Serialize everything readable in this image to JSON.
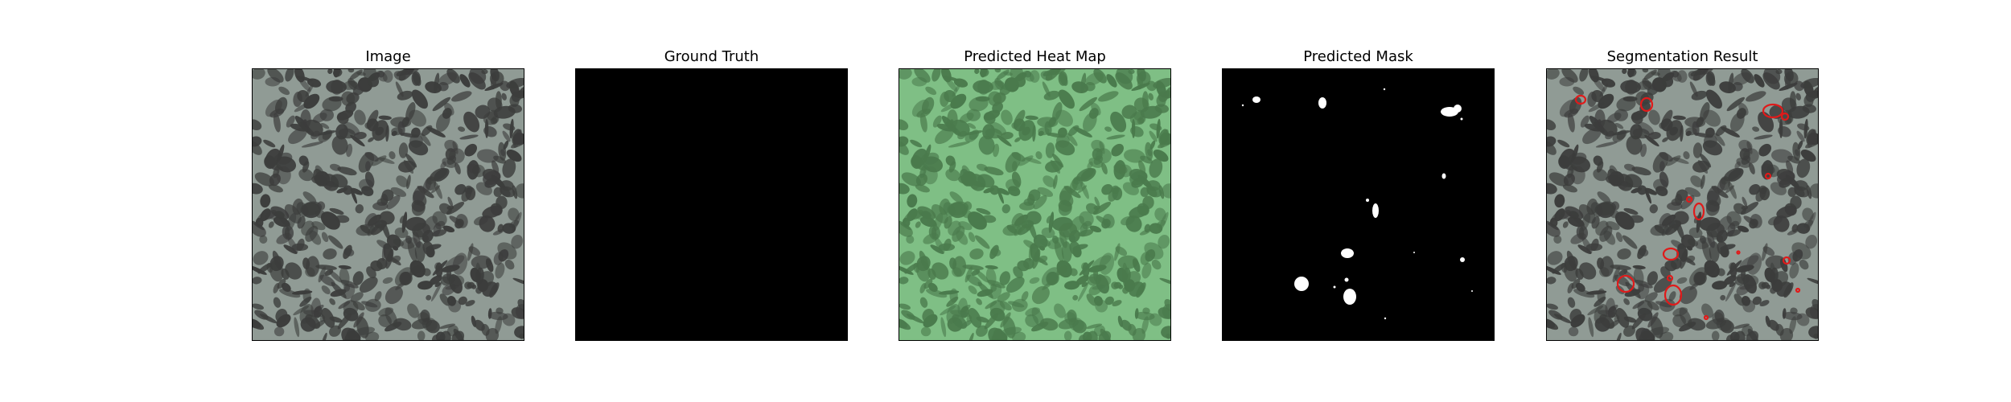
{
  "figure": {
    "panels": [
      {
        "title": "Image"
      },
      {
        "title": "Ground Truth"
      },
      {
        "title": "Predicted Heat Map"
      },
      {
        "title": "Predicted Mask"
      },
      {
        "title": "Segmentation Result"
      }
    ]
  },
  "colors": {
    "texture_light": "#909b95",
    "texture_dark": "#3c3d3c",
    "ground_truth": "#000000",
    "heatmap_light": "#7fbf85",
    "heatmap_dark": "#4a7a4c",
    "mask_background": "#000000",
    "mask_foreground": "#ffffff",
    "contour": "#e01a1a"
  }
}
